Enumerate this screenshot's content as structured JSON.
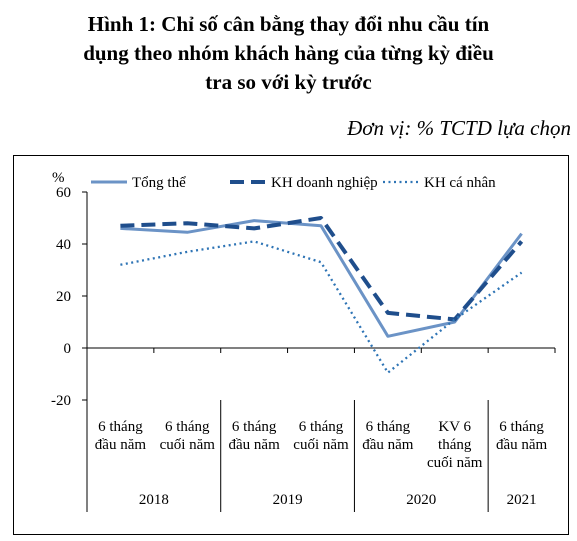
{
  "figure": {
    "title_lines": [
      "Hình 1:  Chỉ số cân bằng thay đổi nhu cầu tín",
      "dụng theo nhóm khách hàng của từng kỳ điều",
      "tra so với kỳ trước"
    ],
    "unit": "Đơn vị: % TCTD lựa chọn"
  },
  "chart_data": {
    "type": "line",
    "y_unit_label": "%",
    "ylim": [
      -20,
      60
    ],
    "yticks": [
      "60",
      "40",
      "20",
      "0",
      "-20"
    ],
    "grid": false,
    "legend_position": "top",
    "categories": [
      [
        "6 tháng",
        "đầu năm"
      ],
      [
        "6 tháng",
        "cuối năm"
      ],
      [
        "6 tháng",
        "đầu năm"
      ],
      [
        "6 tháng",
        "cuối năm"
      ],
      [
        "6 tháng",
        "đầu năm"
      ],
      [
        "KV 6",
        "tháng",
        "cuối năm"
      ],
      [
        "6 tháng",
        "đầu năm"
      ]
    ],
    "groups": [
      {
        "label": "2018",
        "span": 2
      },
      {
        "label": "2019",
        "span": 2
      },
      {
        "label": "2020",
        "span": 2
      },
      {
        "label": "2021",
        "span": 1
      }
    ],
    "series": [
      {
        "name": "Tổng thể",
        "color": "#6b93c6",
        "style": "solid",
        "values": [
          46,
          44.5,
          49,
          47,
          4.5,
          10,
          44
        ]
      },
      {
        "name": "KH doanh nghiệp",
        "color": "#1f4e8c",
        "style": "dashed",
        "values": [
          47,
          48,
          46,
          50,
          13.5,
          11,
          41
        ]
      },
      {
        "name": "KH cá nhân",
        "color": "#2e74b5",
        "style": "dotted",
        "values": [
          32,
          37,
          41,
          33,
          -9.5,
          11,
          29
        ]
      }
    ]
  }
}
